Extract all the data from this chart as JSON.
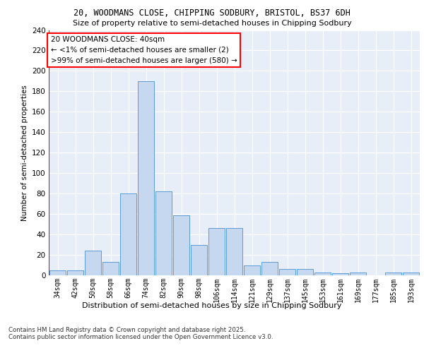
{
  "title": "20, WOODMANS CLOSE, CHIPPING SODBURY, BRISTOL, BS37 6DH",
  "subtitle": "Size of property relative to semi-detached houses in Chipping Sodbury",
  "xlabel": "Distribution of semi-detached houses by size in Chipping Sodbury",
  "ylabel": "Number of semi-detached properties",
  "categories": [
    "34sqm",
    "42sqm",
    "50sqm",
    "58sqm",
    "66sqm",
    "74sqm",
    "82sqm",
    "90sqm",
    "98sqm",
    "106sqm",
    "114sqm",
    "121sqm",
    "129sqm",
    "137sqm",
    "145sqm",
    "153sqm",
    "161sqm",
    "169sqm",
    "177sqm",
    "185sqm",
    "193sqm"
  ],
  "values": [
    5,
    5,
    24,
    13,
    80,
    190,
    82,
    59,
    30,
    46,
    46,
    10,
    13,
    6,
    6,
    3,
    2,
    3,
    0,
    3,
    3
  ],
  "bar_color": "#c5d8f0",
  "bar_edge_color": "#5b9bd5",
  "highlight_color": "#ff0000",
  "background_color": "#e8eef7",
  "grid_color": "#ffffff",
  "annotation_text": "20 WOODMANS CLOSE: 40sqm\n← <1% of semi-detached houses are smaller (2)\n>99% of semi-detached houses are larger (580) →",
  "footer_text": "Contains HM Land Registry data © Crown copyright and database right 2025.\nContains public sector information licensed under the Open Government Licence v3.0.",
  "ylim": [
    0,
    240
  ],
  "yticks": [
    0,
    20,
    40,
    60,
    80,
    100,
    120,
    140,
    160,
    180,
    200,
    220,
    240
  ]
}
